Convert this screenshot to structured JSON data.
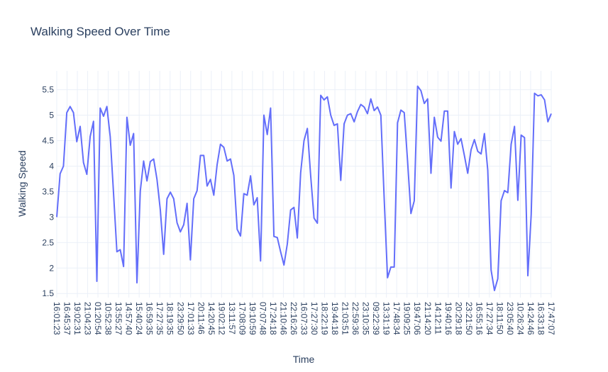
{
  "chart_data": {
    "type": "line",
    "title": "Walking Speed Over Time",
    "xlabel": "Time",
    "ylabel": "Walking Speed",
    "ylim": [
      1.42,
      5.87
    ],
    "yticks": [
      1.5,
      2,
      2.5,
      3,
      3.5,
      4,
      4.5,
      5,
      5.5
    ],
    "ytick_labels": [
      "1.5",
      "2",
      "2.5",
      "3",
      "3.5",
      "4",
      "4.5",
      "5",
      "5.5"
    ],
    "grid": true,
    "xtick_labels": [
      "16:01:23",
      "16:45:37",
      "19:02:31",
      "21:04:23",
      "01:20:54",
      "10:52:38",
      "13:55:27",
      "14:57:40",
      "15:40:24",
      "16:59:35",
      "17:27:35",
      "18:19:35",
      "23:29:50",
      "17:01:33",
      "20:11:46",
      "14:20:45",
      "19:02:12",
      "13:11:57",
      "17:08:09",
      "19:10:59",
      "07:07:48",
      "17:24:18",
      "21:10:46",
      "22:16:26",
      "16:07:33",
      "17:27:30",
      "18:22:19",
      "19:44:18",
      "21:03:51",
      "22:59:36",
      "23:10:35",
      "09:22:39",
      "13:31:19",
      "17:48:34",
      "19:09:25",
      "19:47:06",
      "21:14:20",
      "14:12:11",
      "19:40:16",
      "20:29:18",
      "23:21:50",
      "16:55:16",
      "17:27:34",
      "18:11:50",
      "23:05:40",
      "10:26:24",
      "14:24:46",
      "16:33:18",
      "17:47:07"
    ],
    "series": [
      {
        "color": "#636efa",
        "values": [
          3.0,
          3.85,
          4.0,
          5.05,
          5.17,
          5.05,
          4.48,
          4.78,
          4.07,
          3.84,
          4.58,
          4.88,
          1.74,
          5.14,
          4.98,
          5.17,
          4.58,
          3.46,
          2.32,
          2.36,
          2.03,
          4.96,
          4.41,
          4.64,
          1.71,
          3.51,
          4.1,
          3.71,
          4.09,
          4.14,
          3.74,
          3.14,
          2.27,
          3.36,
          3.49,
          3.36,
          2.89,
          2.71,
          2.85,
          3.27,
          2.16,
          3.36,
          3.52,
          4.21,
          4.21,
          3.61,
          3.74,
          3.43,
          4.03,
          4.43,
          4.37,
          4.1,
          4.14,
          3.82,
          2.76,
          2.63,
          3.46,
          3.43,
          3.81,
          3.24,
          3.38,
          2.14,
          5.0,
          4.62,
          5.14,
          2.62,
          2.6,
          2.32,
          2.06,
          2.47,
          3.14,
          3.19,
          2.59,
          3.87,
          4.5,
          4.74,
          3.81,
          2.98,
          2.88,
          5.39,
          5.3,
          5.36,
          5.0,
          4.8,
          4.83,
          3.72,
          4.83,
          5.0,
          5.03,
          4.87,
          5.07,
          5.21,
          5.16,
          5.03,
          5.32,
          5.09,
          5.16,
          5.0,
          3.36,
          1.81,
          2.02,
          2.02,
          4.85,
          5.1,
          5.05,
          4.1,
          3.07,
          3.32,
          5.57,
          5.48,
          5.23,
          5.32,
          3.86,
          4.96,
          4.57,
          4.49,
          5.08,
          5.08,
          3.57,
          4.68,
          4.43,
          4.54,
          4.21,
          3.86,
          4.32,
          4.52,
          4.29,
          4.24,
          4.64,
          3.92,
          1.96,
          1.56,
          1.79,
          3.32,
          3.52,
          3.48,
          4.43,
          4.78,
          3.33,
          4.61,
          4.56,
          1.85,
          3.05,
          5.43,
          5.38,
          5.4,
          5.3,
          4.87,
          5.03
        ]
      }
    ]
  }
}
